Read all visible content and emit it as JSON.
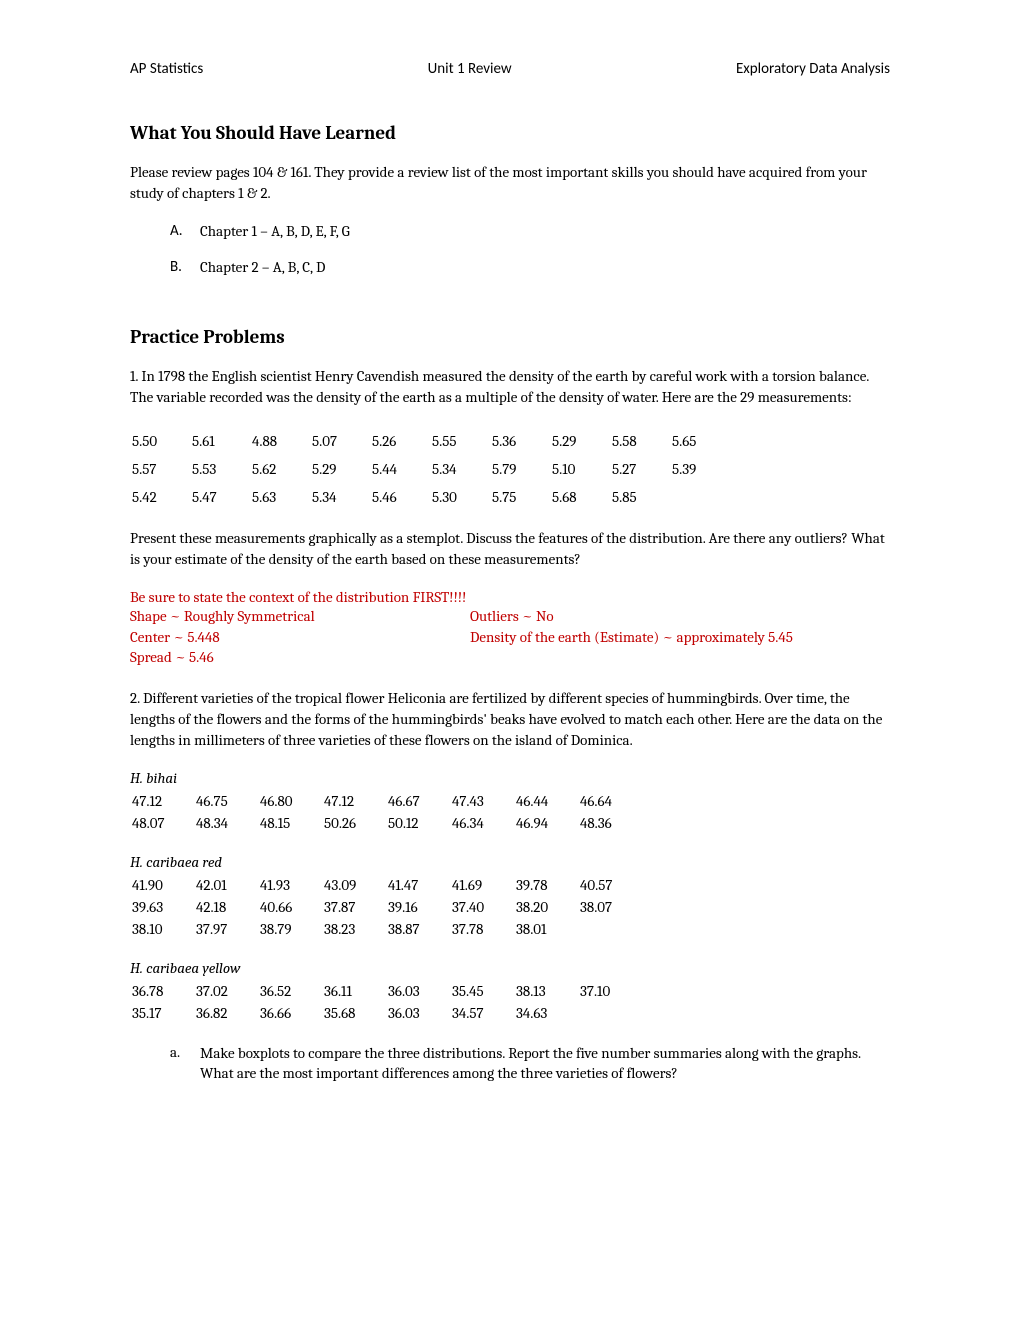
{
  "header": {
    "left": "AP Statistics",
    "center": "Unit 1 Review",
    "right": "Exploratory Data Analysis"
  },
  "section1": {
    "heading": "What You Should Have Learned",
    "intro": "Please review pages 104 & 161. They provide a review list of the most important skills you should have acquired from your study of chapters 1 & 2.",
    "items": [
      {
        "marker": "A.",
        "text": "Chapter 1 – A, B, D, E, F, G"
      },
      {
        "marker": "B.",
        "text": "Chapter 2 – A, B, C, D"
      }
    ]
  },
  "section2": {
    "heading": "Practice Problems",
    "problem1_intro": "1.  In 1798 the English scientist Henry Cavendish measured the density of the earth by careful work with a torsion balance. The variable recorded was the density of the earth as a multiple of the density of water. Here are the 29 measurements:",
    "problem1_data": [
      [
        "5.50",
        "5.61",
        "4.88",
        "5.07",
        "5.26",
        "5.55",
        "5.36",
        "5.29",
        "5.58",
        "5.65"
      ],
      [
        "5.57",
        "5.53",
        "5.62",
        "5.29",
        "5.44",
        "5.34",
        "5.79",
        "5.10",
        "5.27",
        "5.39"
      ],
      [
        "5.42",
        "5.47",
        "5.63",
        "5.34",
        "5.46",
        "5.30",
        "5.75",
        "5.68",
        "5.85",
        ""
      ]
    ],
    "problem1_question": "Present these measurements graphically as a stemplot. Discuss the features of the distribution. Are there any outliers? What is your estimate of the density of the earth based on these measurements?",
    "problem1_answers": {
      "context": "Be sure to state the context of the distribution FIRST!!!!",
      "shape": "Shape ~ Roughly Symmetrical",
      "center": "Center ~ 5.448",
      "spread": "Spread ~ 5.46",
      "outliers": "Outliers ~ No",
      "density": "Density of the earth (Estimate) ~ approximately 5.45"
    },
    "problem2_intro": "2. Different varieties of the tropical flower Heliconia are fertilized by different species of hummingbirds. Over time, the lengths of the flowers and the forms of the hummingbirds' beaks have evolved to match each other. Here are the data on the lengths in millimeters of three varieties of these flowers on the island of Dominica.",
    "flower_groups": [
      {
        "label": "H. bihai",
        "rows": [
          [
            "47.12",
            "46.75",
            "46.80",
            "47.12",
            "46.67",
            "47.43",
            "46.44",
            "46.64"
          ],
          [
            "48.07",
            "48.34",
            "48.15",
            "50.26",
            "50.12",
            "46.34",
            "46.94",
            "48.36"
          ]
        ]
      },
      {
        "label": "H. caribaea red",
        "rows": [
          [
            "41.90",
            "42.01",
            "41.93",
            "43.09",
            "41.47",
            "41.69",
            "39.78",
            "40.57"
          ],
          [
            "39.63",
            "42.18",
            "40.66",
            "37.87",
            "39.16",
            "37.40",
            "38.20",
            "38.07"
          ],
          [
            "38.10",
            "37.97",
            "38.79",
            "38.23",
            "38.87",
            "37.78",
            "38.01",
            ""
          ]
        ]
      },
      {
        "label": "H. caribaea yellow",
        "rows": [
          [
            "36.78",
            "37.02",
            "36.52",
            "36.11",
            "36.03",
            "35.45",
            "38.13",
            "37.10"
          ],
          [
            "35.17",
            "36.82",
            "36.66",
            "35.68",
            "36.03",
            "34.57",
            "34.63",
            ""
          ]
        ]
      }
    ],
    "problem2_sub": {
      "marker": "a.",
      "text": "Make boxplots to compare the three distributions. Report the five number summaries along with the graphs. What are the most important differences among the three varieties of flowers?"
    }
  },
  "colors": {
    "text": "#000000",
    "answer": "#c00000",
    "background": "#ffffff"
  },
  "typography": {
    "body_font": "Cambria, Georgia, serif",
    "header_font": "Calibri, Arial, sans-serif",
    "body_size": 15,
    "heading_size": 19
  }
}
